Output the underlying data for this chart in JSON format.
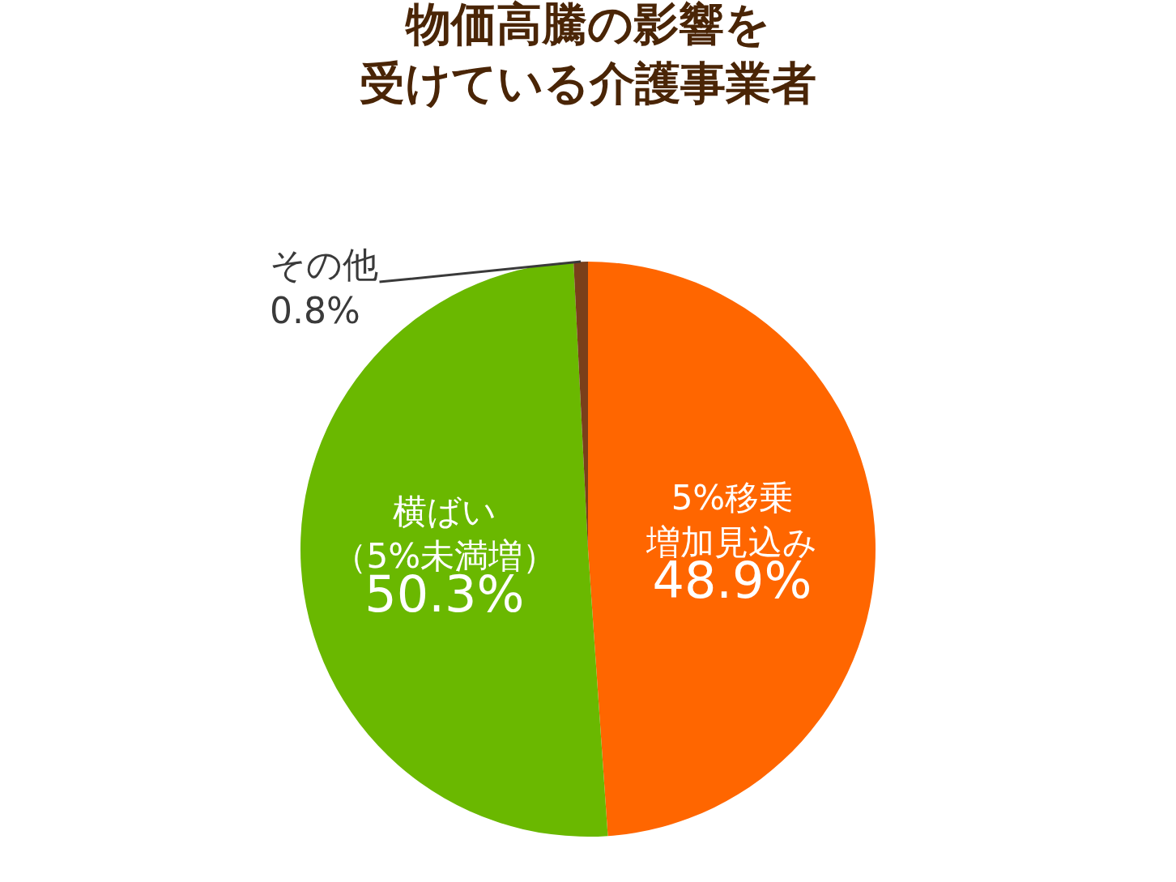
{
  "chart_data": {
    "type": "pie",
    "title": "物価高騰の影響を受けている介護事業者",
    "categories": [
      "5%移乗増加見込み",
      "横ばい（5%未満増）",
      "その他"
    ],
    "values": [
      48.9,
      50.3,
      0.8
    ],
    "value_labels": [
      "48.9%",
      "50.3%",
      "0.8%"
    ],
    "colors": [
      "#ff6600",
      "#6ab800",
      "#7a3f1a"
    ],
    "legend": false
  }
}
